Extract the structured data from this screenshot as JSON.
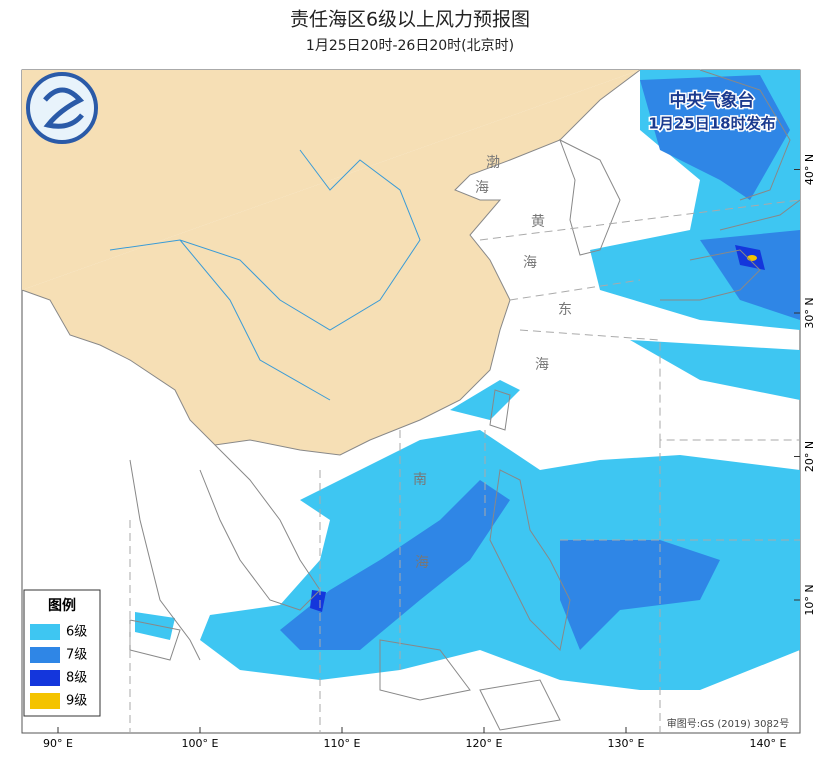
{
  "header": {
    "title": "责任海区6级以上风力预报图",
    "subtitle": "1月25日20时-26日20时(北京时)",
    "agency": "中央气象台",
    "issued": "1月25日18时发布",
    "approval_no": "审图号:GS (2019) 3082号"
  },
  "map": {
    "lon_ticks": [
      {
        "value": 90,
        "label": "90° E"
      },
      {
        "value": 100,
        "label": "100° E"
      },
      {
        "value": 110,
        "label": "110° E"
      },
      {
        "value": 120,
        "label": "120° E"
      },
      {
        "value": 130,
        "label": "130° E"
      },
      {
        "value": 140,
        "label": "140° E"
      }
    ],
    "lat_ticks": [
      {
        "value": 10,
        "label": "10° N"
      },
      {
        "value": 20,
        "label": "20° N"
      },
      {
        "value": 30,
        "label": "30° N"
      },
      {
        "value": 40,
        "label": "40° N"
      }
    ]
  },
  "sea_labels": [
    {
      "text": "渤"
    },
    {
      "text": "海"
    },
    {
      "text": "黄"
    },
    {
      "text": "海"
    },
    {
      "text": "东"
    },
    {
      "text": "海"
    },
    {
      "text": "南"
    },
    {
      "text": "海"
    }
  ],
  "legend": {
    "title": "图例",
    "items": [
      {
        "label": "6级",
        "color": "#3ec6f2"
      },
      {
        "label": "7级",
        "color": "#2f86e6"
      },
      {
        "label": "8级",
        "color": "#1436dc"
      },
      {
        "label": "9级",
        "color": "#f4c300"
      }
    ]
  }
}
